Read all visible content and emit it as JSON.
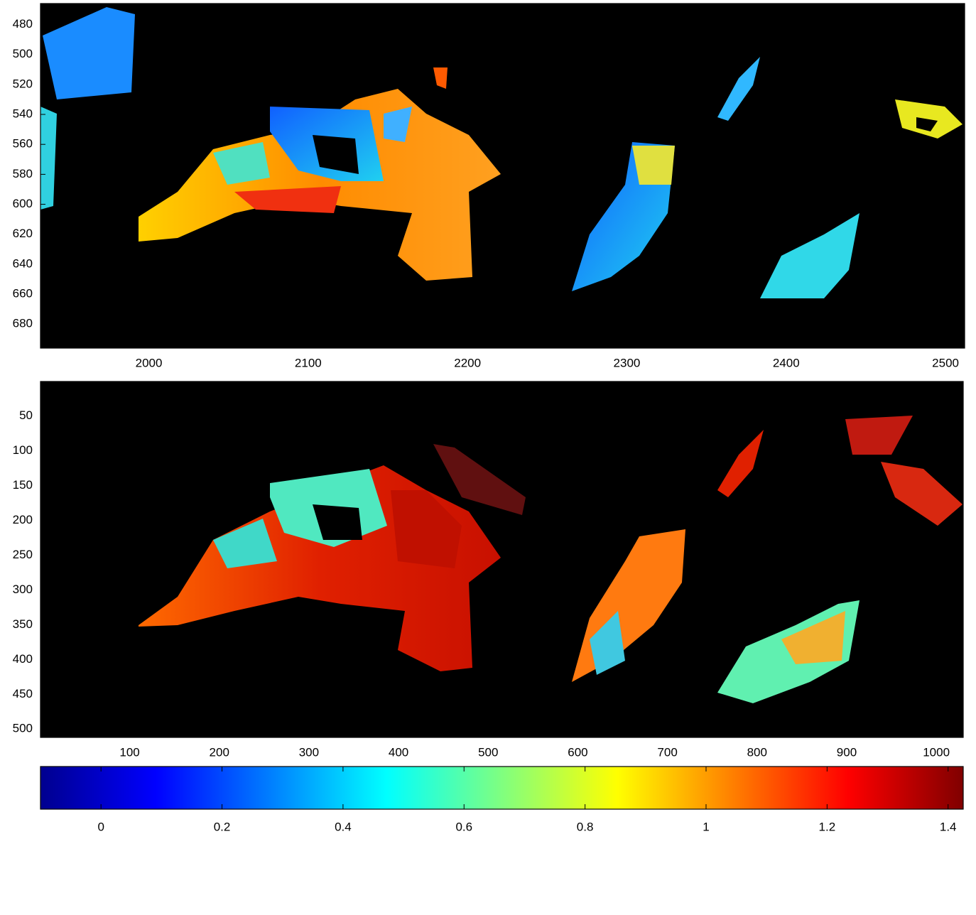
{
  "chart_data": [
    {
      "type": "image",
      "background": "#000000",
      "y_reversed": true,
      "xlim": [
        1932,
        2512
      ],
      "ylim": [
        466,
        696
      ],
      "xticks": [
        2000,
        2100,
        2200,
        2300,
        2400,
        2500
      ],
      "yticks": [
        480,
        500,
        520,
        540,
        560,
        580,
        600,
        620,
        640,
        660,
        680
      ]
    },
    {
      "type": "image",
      "background": "#000000",
      "y_reversed": true,
      "xlim": [
        0.5,
        1030
      ],
      "ylim": [
        0.5,
        512
      ],
      "xticks": [
        100,
        200,
        300,
        400,
        500,
        600,
        700,
        800,
        900,
        1000
      ],
      "yticks": [
        50,
        100,
        150,
        200,
        250,
        300,
        350,
        400,
        450,
        500
      ]
    },
    {
      "type": "colorbar",
      "colormap": "jet",
      "xlim": [
        -0.1,
        1.425
      ],
      "xticks": [
        0,
        0.2,
        0.4,
        0.6,
        0.8,
        1,
        1.2,
        1.4
      ]
    }
  ]
}
